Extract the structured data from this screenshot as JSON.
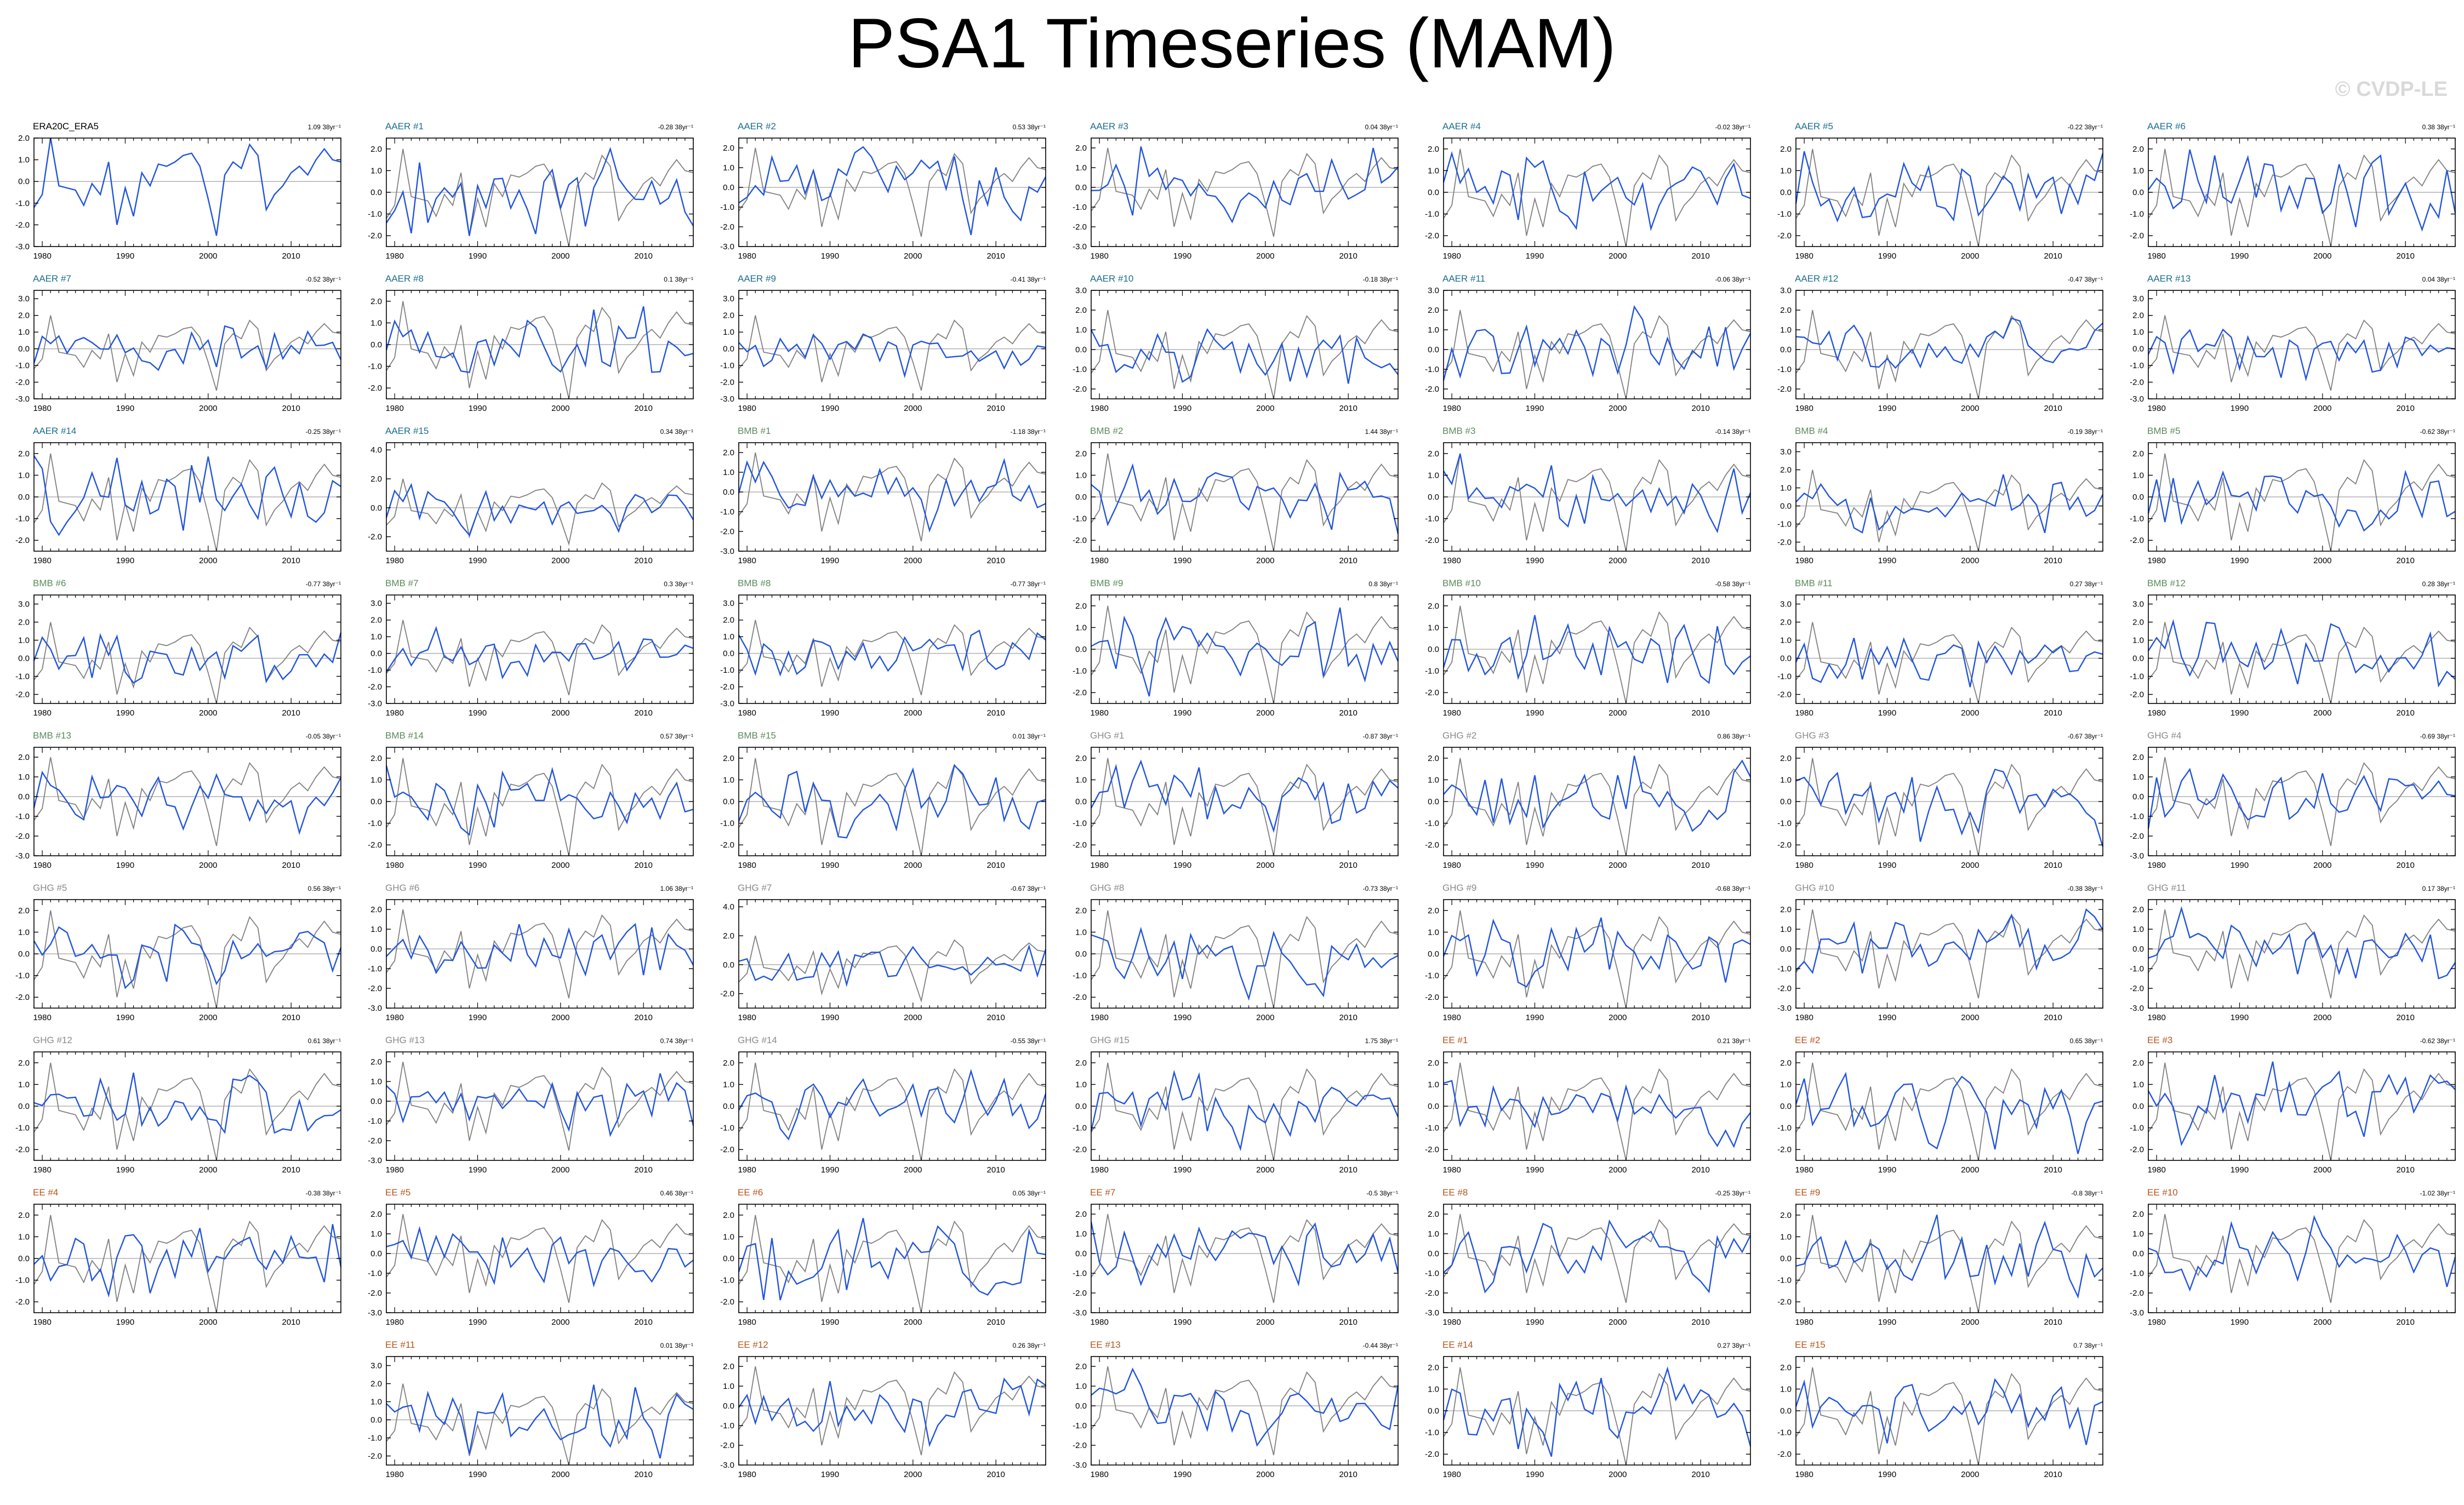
{
  "title": "PSA1 Timeseries (MAM)",
  "watermark": "© CVDP-LE",
  "colors": {
    "obs_line": "#808080",
    "member_line": "#2255dd",
    "zero_line": "#b0b0b0",
    "frame": "#000000",
    "label_obs": "#000000",
    "label_AAER": "#1a6e8e",
    "label_BMB": "#5b8a5b",
    "label_GHG": "#8a8a8a",
    "label_EE": "#b5541d"
  },
  "trend_unit": "38yr⁻¹",
  "chart_data": {
    "type": "line",
    "x_start": 1979,
    "x_end": 2016,
    "xticks": [
      "1980",
      "1990",
      "2000",
      "2010"
    ],
    "grid": false,
    "panels": [
      {
        "label": "ERA20C_ERA5",
        "group": "obs",
        "trend": "1.09",
        "ylim": [
          -3,
          2
        ],
        "yticks": [
          "2.0",
          "1.0",
          "0.0",
          "-1.0",
          "-2.0",
          "-3.0"
        ]
      },
      {
        "label": "AAER #1",
        "group": "AAER",
        "trend": "-0.28",
        "ylim": [
          -2.5,
          2.5
        ],
        "yticks": [
          "2.0",
          "1.0",
          "0.0",
          "-1.0",
          "-2.0"
        ]
      },
      {
        "label": "AAER #2",
        "group": "AAER",
        "trend": "0.53",
        "ylim": [
          -3,
          2.5
        ],
        "yticks": [
          "2.0",
          "1.0",
          "0.0",
          "-1.0",
          "-2.0",
          "-3.0"
        ]
      },
      {
        "label": "AAER #3",
        "group": "AAER",
        "trend": "0.04",
        "ylim": [
          -3,
          2.5
        ],
        "yticks": [
          "2.0",
          "1.0",
          "0.0",
          "-1.0",
          "-2.0",
          "-3.0"
        ]
      },
      {
        "label": "AAER #4",
        "group": "AAER",
        "trend": "-0.02",
        "ylim": [
          -2.5,
          2.5
        ],
        "yticks": [
          "2.0",
          "1.0",
          "0.0",
          "-1.0",
          "-2.0"
        ]
      },
      {
        "label": "AAER #5",
        "group": "AAER",
        "trend": "-0.22",
        "ylim": [
          -2.5,
          2.5
        ],
        "yticks": [
          "2.0",
          "1.0",
          "0.0",
          "-1.0",
          "-2.0"
        ]
      },
      {
        "label": "AAER #6",
        "group": "AAER",
        "trend": "0.38",
        "ylim": [
          -2.5,
          2.5
        ],
        "yticks": [
          "2.0",
          "1.0",
          "0.0",
          "-1.0",
          "-2.0"
        ]
      },
      {
        "label": "AAER #7",
        "group": "AAER",
        "trend": "-0.52",
        "ylim": [
          -3,
          3.5
        ],
        "yticks": [
          "3.0",
          "2.0",
          "1.0",
          "0.0",
          "-1.0",
          "-2.0",
          "-3.0"
        ]
      },
      {
        "label": "AAER #8",
        "group": "AAER",
        "trend": "0.1",
        "ylim": [
          -2.5,
          2.5
        ],
        "yticks": [
          "2.0",
          "1.0",
          "0.0",
          "-1.0",
          "-2.0"
        ]
      },
      {
        "label": "AAER #9",
        "group": "AAER",
        "trend": "-0.41",
        "ylim": [
          -3,
          3.5
        ],
        "yticks": [
          "3.0",
          "2.0",
          "1.0",
          "0.0",
          "-1.0",
          "-2.0",
          "-3.0"
        ]
      },
      {
        "label": "AAER #10",
        "group": "AAER",
        "trend": "-0.18",
        "ylim": [
          -2.5,
          3
        ],
        "yticks": [
          "3.0",
          "2.0",
          "1.0",
          "0.0",
          "-1.0",
          "-2.0"
        ]
      },
      {
        "label": "AAER #11",
        "group": "AAER",
        "trend": "-0.06",
        "ylim": [
          -2.5,
          3
        ],
        "yticks": [
          "3.0",
          "2.0",
          "1.0",
          "0.0",
          "-1.0",
          "-2.0"
        ]
      },
      {
        "label": "AAER #12",
        "group": "AAER",
        "trend": "-0.47",
        "ylim": [
          -2.5,
          3
        ],
        "yticks": [
          "3.0",
          "2.0",
          "1.0",
          "0.0",
          "-1.0",
          "-2.0"
        ]
      },
      {
        "label": "AAER #13",
        "group": "AAER",
        "trend": "0.04",
        "ylim": [
          -3,
          3.5
        ],
        "yticks": [
          "3.0",
          "2.0",
          "1.0",
          "0.0",
          "-1.0",
          "-2.0",
          "-3.0"
        ]
      },
      {
        "label": "AAER #14",
        "group": "AAER",
        "trend": "-0.25",
        "ylim": [
          -2.5,
          2.5
        ],
        "yticks": [
          "2.0",
          "1.0",
          "0.0",
          "-1.0",
          "-2.0"
        ]
      },
      {
        "label": "AAER #15",
        "group": "AAER",
        "trend": "0.34",
        "ylim": [
          -3,
          4.5
        ],
        "yticks": [
          "4.0",
          "2.0",
          "0.0",
          "-2.0"
        ]
      },
      {
        "label": "BMB #1",
        "group": "BMB",
        "trend": "-1.18",
        "ylim": [
          -3,
          2.5
        ],
        "yticks": [
          "2.0",
          "1.0",
          "0.0",
          "-1.0",
          "-2.0",
          "-3.0"
        ]
      },
      {
        "label": "BMB #2",
        "group": "BMB",
        "trend": "1.44",
        "ylim": [
          -2.5,
          2.5
        ],
        "yticks": [
          "2.0",
          "1.0",
          "0.0",
          "-1.0",
          "-2.0"
        ]
      },
      {
        "label": "BMB #3",
        "group": "BMB",
        "trend": "-0.14",
        "ylim": [
          -2.5,
          2.5
        ],
        "yticks": [
          "2.0",
          "1.0",
          "0.0",
          "-1.0",
          "-2.0"
        ]
      },
      {
        "label": "BMB #4",
        "group": "BMB",
        "trend": "-0.19",
        "ylim": [
          -2.5,
          3.5
        ],
        "yticks": [
          "3.0",
          "2.0",
          "1.0",
          "0.0",
          "-1.0",
          "-2.0"
        ]
      },
      {
        "label": "BMB #5",
        "group": "BMB",
        "trend": "-0.62",
        "ylim": [
          -2.5,
          2.5
        ],
        "yticks": [
          "2.0",
          "1.0",
          "0.0",
          "-1.0",
          "-2.0"
        ]
      },
      {
        "label": "BMB #6",
        "group": "BMB",
        "trend": "-0.77",
        "ylim": [
          -2.5,
          3.5
        ],
        "yticks": [
          "3.0",
          "2.0",
          "1.0",
          "0.0",
          "-1.0",
          "-2.0"
        ]
      },
      {
        "label": "BMB #7",
        "group": "BMB",
        "trend": "0.3",
        "ylim": [
          -3,
          3.5
        ],
        "yticks": [
          "3.0",
          "2.0",
          "1.0",
          "0.0",
          "-1.0",
          "-2.0",
          "-3.0"
        ]
      },
      {
        "label": "BMB #8",
        "group": "BMB",
        "trend": "-0.77",
        "ylim": [
          -3,
          3.5
        ],
        "yticks": [
          "3.0",
          "2.0",
          "1.0",
          "0.0",
          "-1.0",
          "-2.0",
          "-3.0"
        ]
      },
      {
        "label": "BMB #9",
        "group": "BMB",
        "trend": "0.8",
        "ylim": [
          -2.5,
          2.5
        ],
        "yticks": [
          "2.0",
          "1.0",
          "0.0",
          "-1.0",
          "-2.0"
        ]
      },
      {
        "label": "BMB #10",
        "group": "BMB",
        "trend": "-0.58",
        "ylim": [
          -2.5,
          2.5
        ],
        "yticks": [
          "2.0",
          "1.0",
          "0.0",
          "-1.0",
          "-2.0"
        ]
      },
      {
        "label": "BMB #11",
        "group": "BMB",
        "trend": "0.27",
        "ylim": [
          -2.5,
          3.5
        ],
        "yticks": [
          "3.0",
          "2.0",
          "1.0",
          "0.0",
          "-1.0",
          "-2.0"
        ]
      },
      {
        "label": "BMB #12",
        "group": "BMB",
        "trend": "0.28",
        "ylim": [
          -2.5,
          3.5
        ],
        "yticks": [
          "3.0",
          "2.0",
          "1.0",
          "0.0",
          "-1.0",
          "-2.0"
        ]
      },
      {
        "label": "BMB #13",
        "group": "BMB",
        "trend": "-0.05",
        "ylim": [
          -3,
          2.5
        ],
        "yticks": [
          "2.0",
          "1.0",
          "0.0",
          "-1.0",
          "-2.0",
          "-3.0"
        ]
      },
      {
        "label": "BMB #14",
        "group": "BMB",
        "trend": "0.57",
        "ylim": [
          -2.5,
          2.5
        ],
        "yticks": [
          "2.0",
          "1.0",
          "0.0",
          "-1.0",
          "-2.0"
        ]
      },
      {
        "label": "BMB #15",
        "group": "BMB",
        "trend": "0.01",
        "ylim": [
          -2.5,
          2.5
        ],
        "yticks": [
          "2.0",
          "1.0",
          "0.0",
          "-1.0",
          "-2.0"
        ]
      },
      {
        "label": "GHG #1",
        "group": "GHG",
        "trend": "-0.87",
        "ylim": [
          -2.5,
          2.5
        ],
        "yticks": [
          "2.0",
          "1.0",
          "0.0",
          "-1.0",
          "-2.0"
        ]
      },
      {
        "label": "GHG #2",
        "group": "GHG",
        "trend": "0.86",
        "ylim": [
          -2.5,
          2.5
        ],
        "yticks": [
          "2.0",
          "1.0",
          "0.0",
          "-1.0",
          "-2.0"
        ]
      },
      {
        "label": "GHG #3",
        "group": "GHG",
        "trend": "-0.67",
        "ylim": [
          -2.5,
          2.5
        ],
        "yticks": [
          "2.0",
          "1.0",
          "0.0",
          "-1.0",
          "-2.0"
        ]
      },
      {
        "label": "GHG #4",
        "group": "GHG",
        "trend": "-0.69",
        "ylim": [
          -3,
          2.5
        ],
        "yticks": [
          "2.0",
          "1.0",
          "0.0",
          "-1.0",
          "-2.0",
          "-3.0"
        ]
      },
      {
        "label": "GHG #5",
        "group": "GHG",
        "trend": "0.56",
        "ylim": [
          -2.5,
          2.5
        ],
        "yticks": [
          "2.0",
          "1.0",
          "0.0",
          "-1.0",
          "-2.0"
        ]
      },
      {
        "label": "GHG #6",
        "group": "GHG",
        "trend": "1.06",
        "ylim": [
          -3,
          2.5
        ],
        "yticks": [
          "2.0",
          "1.0",
          "0.0",
          "-1.0",
          "-2.0",
          "-3.0"
        ]
      },
      {
        "label": "GHG #7",
        "group": "GHG",
        "trend": "-0.67",
        "ylim": [
          -3,
          4.5
        ],
        "yticks": [
          "4.0",
          "2.0",
          "0.0",
          "-2.0"
        ]
      },
      {
        "label": "GHG #8",
        "group": "GHG",
        "trend": "-0.73",
        "ylim": [
          -2.5,
          2.5
        ],
        "yticks": [
          "2.0",
          "1.0",
          "0.0",
          "-1.0",
          "-2.0"
        ]
      },
      {
        "label": "GHG #9",
        "group": "GHG",
        "trend": "-0.68",
        "ylim": [
          -2.5,
          2.5
        ],
        "yticks": [
          "2.0",
          "1.0",
          "0.0",
          "-1.0",
          "-2.0"
        ]
      },
      {
        "label": "GHG #10",
        "group": "GHG",
        "trend": "-0.38",
        "ylim": [
          -3,
          2.5
        ],
        "yticks": [
          "2.0",
          "1.0",
          "0.0",
          "-1.0",
          "-2.0",
          "-3.0"
        ]
      },
      {
        "label": "GHG #11",
        "group": "GHG",
        "trend": "0.17",
        "ylim": [
          -3,
          2.5
        ],
        "yticks": [
          "2.0",
          "1.0",
          "0.0",
          "-1.0",
          "-2.0",
          "-3.0"
        ]
      },
      {
        "label": "GHG #12",
        "group": "GHG",
        "trend": "0.61",
        "ylim": [
          -2.5,
          2.5
        ],
        "yticks": [
          "2.0",
          "1.0",
          "0.0",
          "-1.0",
          "-2.0"
        ]
      },
      {
        "label": "GHG #13",
        "group": "GHG",
        "trend": "0.74",
        "ylim": [
          -3,
          2.5
        ],
        "yticks": [
          "2.0",
          "1.0",
          "0.0",
          "-1.0",
          "-2.0",
          "-3.0"
        ]
      },
      {
        "label": "GHG #14",
        "group": "GHG",
        "trend": "-0.55",
        "ylim": [
          -2.5,
          2.5
        ],
        "yticks": [
          "2.0",
          "1.0",
          "0.0",
          "-1.0",
          "-2.0"
        ]
      },
      {
        "label": "GHG #15",
        "group": "GHG",
        "trend": "1.75",
        "ylim": [
          -2.5,
          2.5
        ],
        "yticks": [
          "2.0",
          "1.0",
          "0.0",
          "-1.0",
          "-2.0"
        ]
      },
      {
        "label": "EE #1",
        "group": "EE",
        "trend": "0.21",
        "ylim": [
          -2.5,
          2.5
        ],
        "yticks": [
          "2.0",
          "1.0",
          "0.0",
          "-1.0",
          "-2.0"
        ]
      },
      {
        "label": "EE #2",
        "group": "EE",
        "trend": "0.65",
        "ylim": [
          -2.5,
          2.5
        ],
        "yticks": [
          "2.0",
          "1.0",
          "0.0",
          "-1.0",
          "-2.0"
        ]
      },
      {
        "label": "EE #3",
        "group": "EE",
        "trend": "-0.62",
        "ylim": [
          -2.5,
          2.5
        ],
        "yticks": [
          "2.0",
          "1.0",
          "0.0",
          "-1.0",
          "-2.0"
        ]
      },
      {
        "label": "EE #4",
        "group": "EE",
        "trend": "-0.38",
        "ylim": [
          -2.5,
          2.5
        ],
        "yticks": [
          "2.0",
          "1.0",
          "0.0",
          "-1.0",
          "-2.0"
        ]
      },
      {
        "label": "EE #5",
        "group": "EE",
        "trend": "0.46",
        "ylim": [
          -3,
          2.5
        ],
        "yticks": [
          "2.0",
          "1.0",
          "0.0",
          "-1.0",
          "-2.0",
          "-3.0"
        ]
      },
      {
        "label": "EE #6",
        "group": "EE",
        "trend": "0.05",
        "ylim": [
          -2.5,
          2.5
        ],
        "yticks": [
          "2.0",
          "1.0",
          "0.0",
          "-1.0",
          "-2.0"
        ]
      },
      {
        "label": "EE #7",
        "group": "EE",
        "trend": "-0.5",
        "ylim": [
          -3,
          2.5
        ],
        "yticks": [
          "2.0",
          "1.0",
          "0.0",
          "-1.0",
          "-2.0",
          "-3.0"
        ]
      },
      {
        "label": "EE #8",
        "group": "EE",
        "trend": "-0.25",
        "ylim": [
          -3,
          2.5
        ],
        "yticks": [
          "2.0",
          "1.0",
          "0.0",
          "-1.0",
          "-2.0",
          "-3.0"
        ]
      },
      {
        "label": "EE #9",
        "group": "EE",
        "trend": "-0.8",
        "ylim": [
          -2.5,
          2.5
        ],
        "yticks": [
          "2.0",
          "1.0",
          "0.0",
          "-1.0",
          "-2.0"
        ]
      },
      {
        "label": "EE #10",
        "group": "EE",
        "trend": "-1.02",
        "ylim": [
          -3,
          2.5
        ],
        "yticks": [
          "2.0",
          "1.0",
          "0.0",
          "-1.0",
          "-2.0",
          "-3.0"
        ]
      },
      {
        "label": "EE #11",
        "group": "EE",
        "trend": "0.01",
        "ylim": [
          -2.5,
          3.5
        ],
        "yticks": [
          "3.0",
          "2.0",
          "1.0",
          "0.0",
          "-1.0",
          "-2.0"
        ]
      },
      {
        "label": "EE #12",
        "group": "EE",
        "trend": "0.26",
        "ylim": [
          -3,
          2.5
        ],
        "yticks": [
          "2.0",
          "1.0",
          "0.0",
          "-1.0",
          "-2.0",
          "-3.0"
        ]
      },
      {
        "label": "EE #13",
        "group": "EE",
        "trend": "-0.44",
        "ylim": [
          -3,
          2.5
        ],
        "yticks": [
          "2.0",
          "1.0",
          "0.0",
          "-1.0",
          "-2.0",
          "-3.0"
        ]
      },
      {
        "label": "EE #14",
        "group": "EE",
        "trend": "0.27",
        "ylim": [
          -2.5,
          2.5
        ],
        "yticks": [
          "2.0",
          "1.0",
          "0.0",
          "-1.0",
          "-2.0"
        ]
      },
      {
        "label": "EE #15",
        "group": "EE",
        "trend": "0.7",
        "ylim": [
          -2.5,
          2.5
        ],
        "yticks": [
          "2.0",
          "1.0",
          "0.0",
          "-1.0",
          "-2.0"
        ]
      }
    ],
    "observed_series": [
      -1.2,
      -0.6,
      2.0,
      -0.2,
      -0.3,
      -0.4,
      -1.1,
      -0.1,
      -0.6,
      0.9,
      -2.0,
      -0.3,
      -1.6,
      0.4,
      -0.2,
      0.8,
      0.7,
      0.9,
      1.2,
      1.3,
      0.7,
      -0.8,
      -2.5,
      0.3,
      0.9,
      0.6,
      1.7,
      1.2,
      -1.3,
      -0.6,
      -0.2,
      0.4,
      0.7,
      0.3,
      1.0,
      1.5,
      1.0,
      0.9
    ]
  }
}
